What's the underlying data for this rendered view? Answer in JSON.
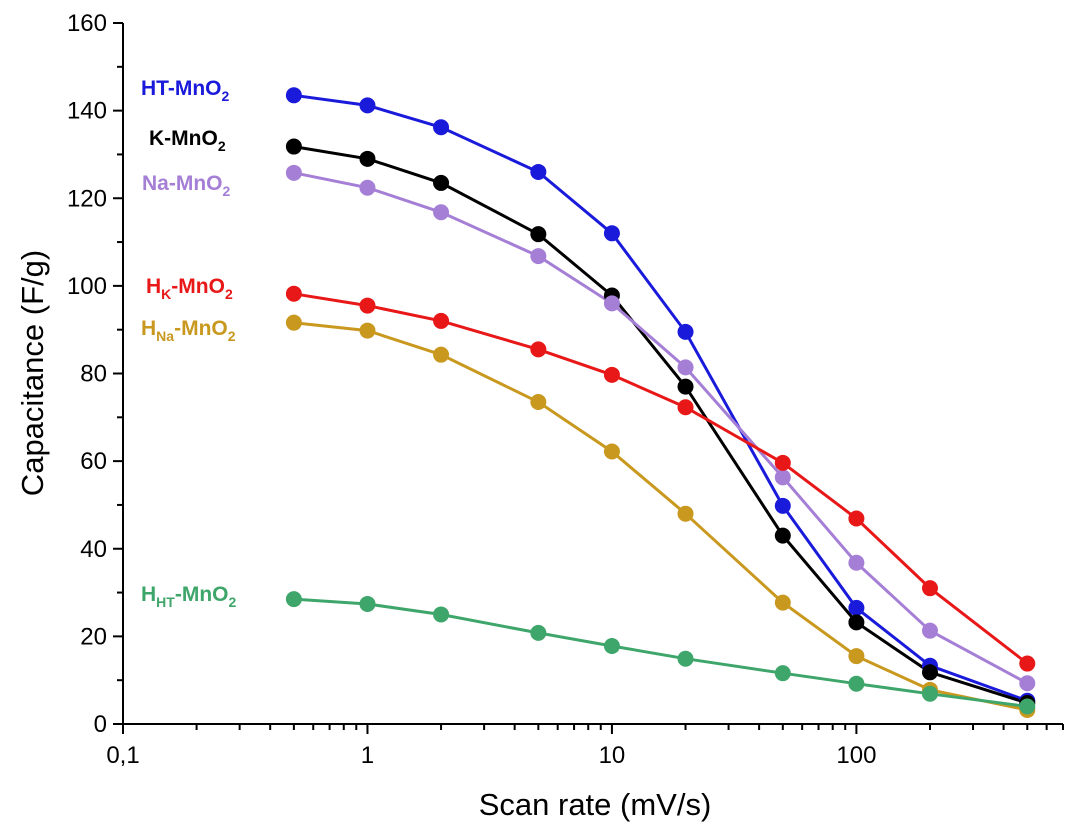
{
  "chart_data": {
    "type": "line",
    "x_scale": "log",
    "xlabel": "Scan rate (mV/s)",
    "ylabel": "Capacitance (F/g)",
    "xlim": [
      0.1,
      700
    ],
    "ylim": [
      0,
      160
    ],
    "x_ticks": [
      0.1,
      1,
      10,
      100
    ],
    "x_tick_labels": [
      "0,1",
      "1",
      "10",
      "100"
    ],
    "y_ticks": [
      0,
      20,
      40,
      60,
      80,
      100,
      120,
      140,
      160
    ],
    "y_tick_labels": [
      "0",
      "20",
      "40",
      "60",
      "80",
      "100",
      "120",
      "140",
      "160"
    ],
    "grid": false,
    "legend": "inline labels at left",
    "x": [
      0.5,
      1,
      2,
      5,
      10,
      20,
      50,
      100,
      200,
      500
    ],
    "series": [
      {
        "name": "HT-MnO2",
        "label_main": "HT-MnO",
        "label_sub": "2",
        "label_suffix": "",
        "color": "#1a1adb",
        "values": [
          143.5,
          141.2,
          136.2,
          126.0,
          112.0,
          89.5,
          49.8,
          26.5,
          13.3,
          5.3
        ]
      },
      {
        "name": "K-MnO2",
        "label_main": "K-MnO",
        "label_sub": "2",
        "label_suffix": "",
        "color": "#000000",
        "values": [
          131.8,
          129.0,
          123.5,
          111.8,
          97.8,
          77.0,
          43.0,
          23.2,
          11.8,
          4.8
        ]
      },
      {
        "name": "Na-MnO2",
        "label_main": "Na-MnO",
        "label_sub": "2",
        "label_suffix": "",
        "color": "#a57fd6",
        "values": [
          125.8,
          122.4,
          116.8,
          106.8,
          96.0,
          81.4,
          56.3,
          36.8,
          21.3,
          9.3
        ]
      },
      {
        "name": "HK-MnO2",
        "label_main": "H",
        "label_sub": "K",
        "label_suffix": "-MnO",
        "label_sub2": "2",
        "color": "#e81818",
        "values": [
          98.2,
          95.5,
          92.0,
          85.5,
          79.7,
          72.3,
          59.6,
          46.9,
          31.0,
          13.8
        ]
      },
      {
        "name": "HNa-MnO2",
        "label_main": "H",
        "label_sub": "Na",
        "label_suffix": "-MnO",
        "label_sub2": "2",
        "color": "#c9981e",
        "values": [
          91.6,
          89.8,
          84.3,
          73.5,
          62.2,
          48.0,
          27.7,
          15.5,
          7.8,
          3.2
        ]
      },
      {
        "name": "HHT-MnO2",
        "label_main": "H",
        "label_sub": "HT",
        "label_suffix": "-MnO",
        "label_sub2": "2",
        "color": "#3fa66b",
        "values": [
          28.5,
          27.4,
          25.0,
          20.8,
          17.8,
          14.9,
          11.6,
          9.2,
          6.9,
          4.0
        ]
      }
    ]
  }
}
